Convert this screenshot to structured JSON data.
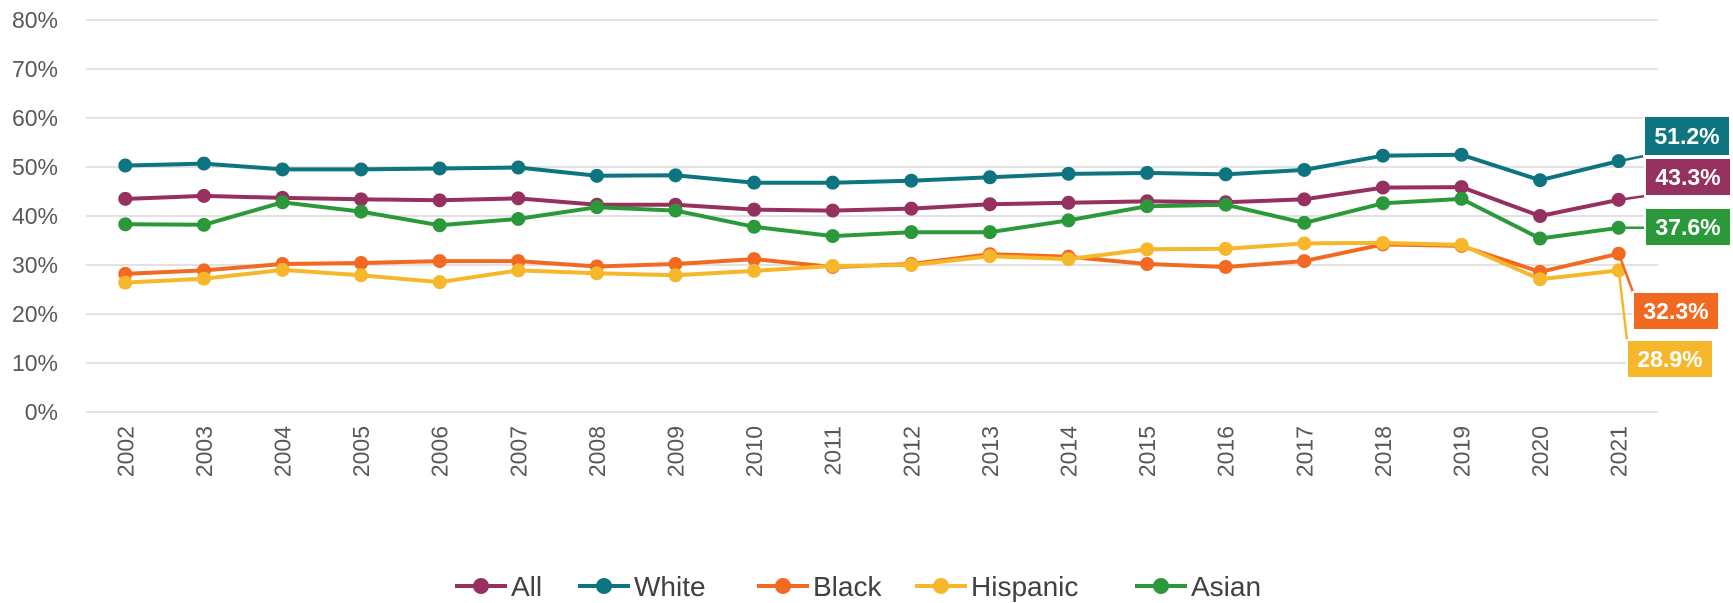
{
  "chart_data": {
    "type": "line",
    "title": "",
    "xlabel": "",
    "ylabel": "",
    "x": [
      "2002",
      "2003",
      "2004",
      "2005",
      "2006",
      "2007",
      "2008",
      "2009",
      "2010",
      "2011",
      "2012",
      "2013",
      "2014",
      "2015",
      "2016",
      "2017",
      "2018",
      "2019",
      "2020",
      "2021"
    ],
    "ylim": [
      0,
      80
    ],
    "yticks": [
      0,
      10,
      20,
      30,
      40,
      50,
      60,
      70,
      80
    ],
    "ytick_labels": [
      "0%",
      "10%",
      "20%",
      "30%",
      "40%",
      "50%",
      "60%",
      "70%",
      "80%"
    ],
    "grid": true,
    "legend_position": "bottom",
    "series": [
      {
        "name": "All",
        "color": "#95305f",
        "values": [
          43.5,
          44.1,
          43.7,
          43.4,
          43.2,
          43.6,
          42.3,
          42.3,
          41.3,
          41.1,
          41.5,
          42.4,
          42.7,
          43.0,
          42.8,
          43.4,
          45.8,
          45.9,
          40.0,
          43.3
        ],
        "end_label": "43.3%"
      },
      {
        "name": "White",
        "color": "#0e7580",
        "values": [
          50.3,
          50.7,
          49.5,
          49.5,
          49.7,
          49.9,
          48.2,
          48.3,
          46.8,
          46.8,
          47.2,
          47.9,
          48.6,
          48.8,
          48.5,
          49.4,
          52.3,
          52.5,
          47.3,
          51.2
        ],
        "end_label": "51.2%"
      },
      {
        "name": "Black",
        "color": "#f26a21",
        "values": [
          28.2,
          28.9,
          30.2,
          30.4,
          30.8,
          30.8,
          29.7,
          30.2,
          31.2,
          29.6,
          30.2,
          32.2,
          31.7,
          30.2,
          29.6,
          30.8,
          34.2,
          33.9,
          28.6,
          32.3
        ],
        "end_label": "32.3%"
      },
      {
        "name": "Hispanic",
        "color": "#f6b72a",
        "values": [
          26.4,
          27.2,
          29.0,
          27.9,
          26.5,
          28.9,
          28.3,
          27.9,
          28.8,
          29.8,
          30.0,
          31.8,
          31.2,
          33.2,
          33.3,
          34.4,
          34.5,
          34.1,
          27.1,
          28.9
        ],
        "end_label": "28.9%"
      },
      {
        "name": "Asian",
        "color": "#2b9939",
        "values": [
          38.3,
          38.2,
          42.8,
          40.9,
          38.1,
          39.4,
          41.8,
          41.1,
          37.8,
          35.9,
          36.7,
          36.7,
          39.1,
          42.0,
          42.3,
          38.6,
          42.6,
          43.5,
          35.4,
          37.6
        ],
        "end_label": "37.6%"
      }
    ]
  }
}
